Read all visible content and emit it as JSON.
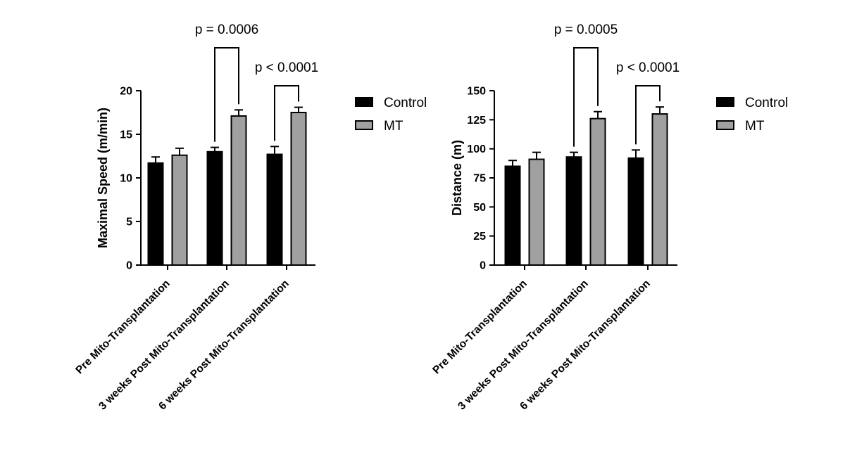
{
  "chart_data": [
    {
      "type": "bar",
      "ylabel": "Maximal Speed (m/min)",
      "ylim": [
        0,
        20
      ],
      "yticks": [
        0,
        5,
        10,
        15,
        20
      ],
      "categories": [
        "Pre Mito-Transplantation",
        "3 weeks Post Mito-Transplantation",
        "6 weeks Post Mito-Transplantation"
      ],
      "series": [
        {
          "name": "Control",
          "color": "#000000",
          "values": [
            11.7,
            13.0,
            12.7
          ],
          "errors": [
            0.7,
            0.5,
            0.9
          ]
        },
        {
          "name": "MT",
          "color": "#a0a0a0",
          "values": [
            12.6,
            17.1,
            17.5
          ],
          "errors": [
            0.8,
            0.7,
            0.6
          ]
        }
      ],
      "annotations": [
        {
          "group": 1,
          "text": "p = 0.0006",
          "level": "high"
        },
        {
          "group": 2,
          "text": "p < 0.0001",
          "level": "low"
        }
      ],
      "legend": "right"
    },
    {
      "type": "bar",
      "ylabel": "Distance (m)",
      "ylim": [
        0,
        150
      ],
      "yticks": [
        0,
        25,
        50,
        75,
        100,
        125,
        150
      ],
      "categories": [
        "Pre Mito-Transplantation",
        "3 weeks Post Mito-Transplantation",
        "6 weeks Post Mito-Transplantation"
      ],
      "series": [
        {
          "name": "Control",
          "color": "#000000",
          "values": [
            85,
            93,
            92
          ],
          "errors": [
            5,
            4,
            7
          ]
        },
        {
          "name": "MT",
          "color": "#a0a0a0",
          "values": [
            91,
            126,
            130
          ],
          "errors": [
            6,
            6,
            6
          ]
        }
      ],
      "annotations": [
        {
          "group": 1,
          "text": "p = 0.0005",
          "level": "high"
        },
        {
          "group": 2,
          "text": "p < 0.0001",
          "level": "low"
        }
      ],
      "legend": "right"
    }
  ]
}
